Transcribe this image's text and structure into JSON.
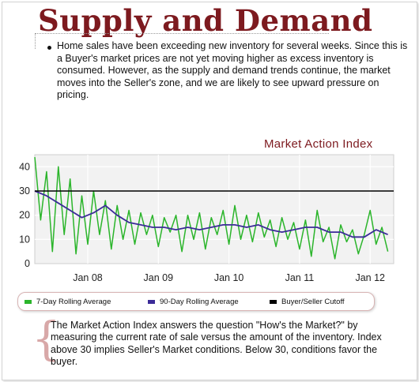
{
  "page": {
    "title": "Supply and Demand",
    "intro_text": "Home sales have been exceeding new inventory for several weeks. Since this is a Buyer's market prices are not yet moving higher as excess inventory is consumed.  However, as the supply and demand trends continue, the market moves into the Seller's zone, and we are likely to see upward pressure on pricing.",
    "footnote_text": "The Market Action Index answers the question \"How's the Market?\" by measuring the current rate of sale versus the amount of the inventory.  Index above 30 implies Seller's Market conditions. Below 30, conditions favor the buyer."
  },
  "chart_data": {
    "type": "line",
    "title": "Market Action Index",
    "xlabel": "",
    "ylabel": "",
    "ylim": [
      0,
      45
    ],
    "xlim": [
      "2007-04",
      "2012-05"
    ],
    "grid": true,
    "legend_position": "bottom",
    "yticks": [
      "0",
      "10",
      "20",
      "30",
      "40"
    ],
    "xticks": [
      {
        "x": "2008-01",
        "label": "Jan 08"
      },
      {
        "x": "2009-01",
        "label": "Jan 09"
      },
      {
        "x": "2010-01",
        "label": "Jan 10"
      },
      {
        "x": "2011-01",
        "label": "Jan 11"
      },
      {
        "x": "2012-01",
        "label": "Jan 12"
      }
    ],
    "series": [
      {
        "name": "7-Day Rolling Average",
        "color": "#2bb52b",
        "x": [
          "2007-04",
          "2007-05",
          "2007-06",
          "2007-07",
          "2007-08",
          "2007-09",
          "2007-10",
          "2007-11",
          "2007-12",
          "2008-01",
          "2008-02",
          "2008-03",
          "2008-04",
          "2008-05",
          "2008-06",
          "2008-07",
          "2008-08",
          "2008-09",
          "2008-10",
          "2008-11",
          "2008-12",
          "2009-01",
          "2009-02",
          "2009-03",
          "2009-04",
          "2009-05",
          "2009-06",
          "2009-07",
          "2009-08",
          "2009-09",
          "2009-10",
          "2009-11",
          "2009-12",
          "2010-01",
          "2010-02",
          "2010-03",
          "2010-04",
          "2010-05",
          "2010-06",
          "2010-07",
          "2010-08",
          "2010-09",
          "2010-10",
          "2010-11",
          "2010-12",
          "2011-01",
          "2011-02",
          "2011-03",
          "2011-04",
          "2011-05",
          "2011-06",
          "2011-07",
          "2011-08",
          "2011-09",
          "2011-10",
          "2011-11",
          "2011-12",
          "2012-01",
          "2012-02",
          "2012-03",
          "2012-04"
        ],
        "values": [
          44,
          18,
          38,
          5,
          40,
          12,
          35,
          4,
          28,
          8,
          30,
          12,
          26,
          6,
          24,
          10,
          22,
          8,
          21,
          12,
          20,
          7,
          19,
          13,
          20,
          5,
          20,
          10,
          21,
          6,
          19,
          12,
          22,
          8,
          24,
          10,
          20,
          9,
          21,
          11,
          18,
          7,
          19,
          10,
          17,
          6,
          18,
          3,
          22,
          9,
          15,
          2,
          16,
          9,
          14,
          4,
          12,
          22,
          8,
          15,
          5
        ]
      },
      {
        "name": "90-Day Rolling Average",
        "color": "#3b2b98",
        "x": [
          "2007-04",
          "2007-06",
          "2007-08",
          "2007-10",
          "2007-12",
          "2008-02",
          "2008-04",
          "2008-06",
          "2008-08",
          "2008-10",
          "2008-12",
          "2009-02",
          "2009-04",
          "2009-06",
          "2009-08",
          "2009-10",
          "2009-12",
          "2010-02",
          "2010-04",
          "2010-06",
          "2010-08",
          "2010-10",
          "2010-12",
          "2011-02",
          "2011-04",
          "2011-06",
          "2011-08",
          "2011-10",
          "2011-12",
          "2012-02",
          "2012-04"
        ],
        "values": [
          30,
          28,
          25,
          22,
          19,
          21,
          24,
          20,
          17,
          16,
          15,
          15,
          14,
          15,
          14,
          15,
          16,
          16,
          15,
          16,
          14,
          13,
          14,
          15,
          15,
          13,
          13,
          11,
          11,
          14,
          12
        ]
      },
      {
        "name": "Buyer/Seller Cutoff",
        "color": "#000000",
        "x": [
          "2007-04",
          "2012-05"
        ],
        "values": [
          30,
          30
        ]
      }
    ]
  }
}
